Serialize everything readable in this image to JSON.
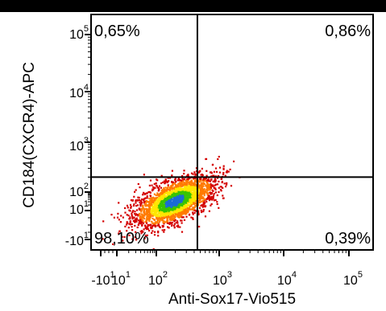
{
  "chart_data": {
    "type": "scatter",
    "xlabel": "Anti-Sox17-Vio515",
    "ylabel": "CD184(CXCR4)-APC",
    "x_scale": "biexponential",
    "y_scale": "biexponential",
    "x_ticks": [
      {
        "base": "-10",
        "exp": "1"
      },
      {
        "base": "10",
        "exp": "1"
      },
      {
        "base": "10",
        "exp": "2"
      },
      {
        "base": "10",
        "exp": "3"
      },
      {
        "base": "10",
        "exp": "4"
      },
      {
        "base": "10",
        "exp": "5"
      }
    ],
    "y_ticks": [
      {
        "base": "10",
        "exp": "5"
      },
      {
        "base": "10",
        "exp": "4"
      },
      {
        "base": "10",
        "exp": "3"
      },
      {
        "base": "10",
        "exp": "2"
      },
      {
        "base": "10",
        "exp": "1"
      },
      {
        "base": "-10",
        "exp": "1"
      }
    ],
    "gate": {
      "x": 450,
      "y": 200
    },
    "quadrants": {
      "upper_left": "0,65%",
      "upper_right": "0,86%",
      "lower_left": "98,10%",
      "lower_right": "0,39%"
    },
    "population": {
      "center_x": 190,
      "center_y": 35,
      "colormap": [
        "#d40000",
        "#ff7a00",
        "#ffe600",
        "#39c400",
        "#1a6bd4"
      ]
    }
  }
}
